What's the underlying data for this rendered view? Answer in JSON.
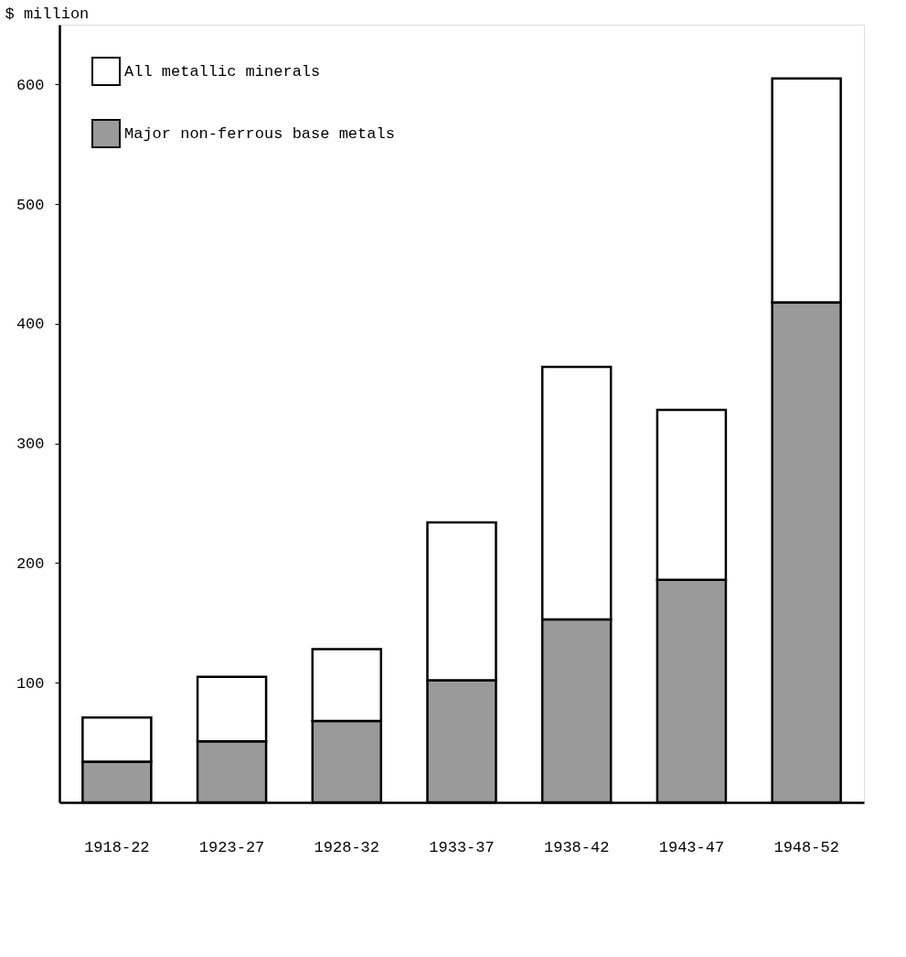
{
  "chart_data": {
    "type": "bar",
    "stacked": true,
    "ylabel": "$ million",
    "categories": [
      "1918-22",
      "1923-27",
      "1928-32",
      "1933-37",
      "1938-42",
      "1943-47",
      "1948-52"
    ],
    "series": [
      {
        "name": "Major non-ferrous base metals",
        "color": "#9a9a9a",
        "values": [
          34,
          51,
          68,
          102,
          153,
          186,
          418
        ]
      },
      {
        "name": "All metallic minerals",
        "color": "#ffffff",
        "values": [
          37,
          54,
          60,
          132,
          211,
          142,
          187
        ]
      }
    ],
    "ylim": [
      0,
      650
    ],
    "yticks": [
      100,
      200,
      300,
      400,
      500,
      600
    ],
    "grid": false,
    "legend": "top left"
  }
}
